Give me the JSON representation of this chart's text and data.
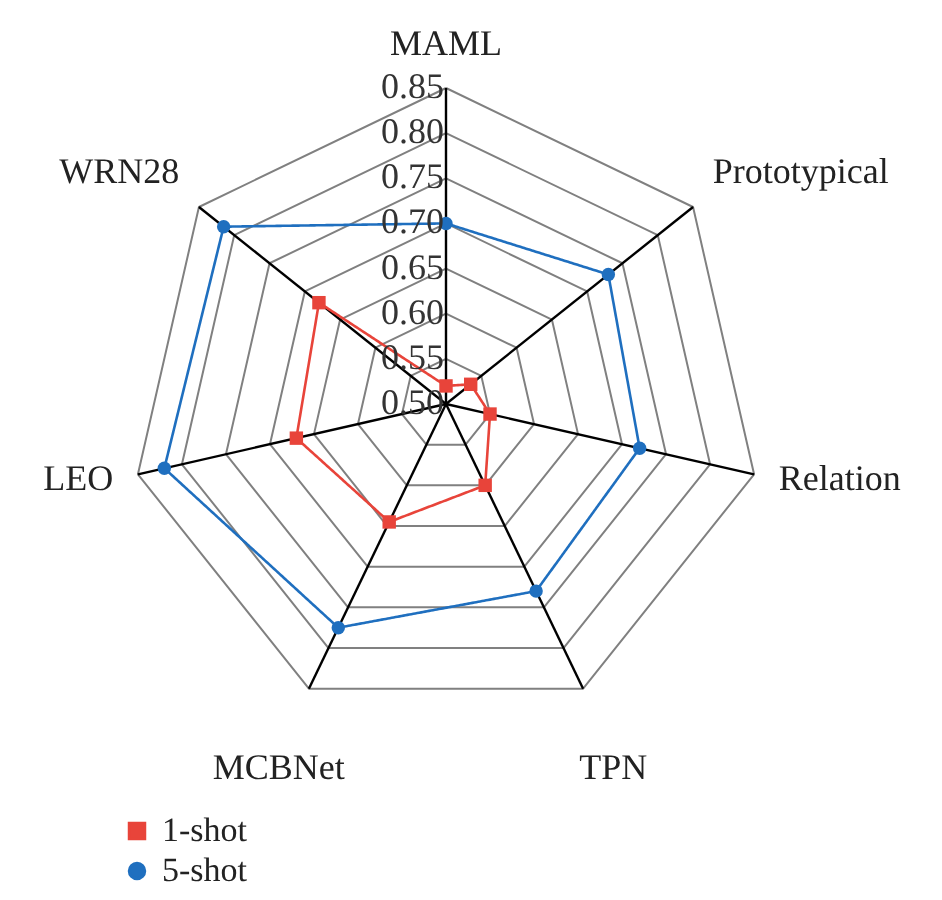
{
  "chart_data": {
    "type": "radar",
    "categories": [
      "MAML",
      "Prototypical",
      "Relation",
      "TPN",
      "MCBNet",
      "LEO",
      "WRN28"
    ],
    "series": [
      {
        "name": "1-shot",
        "color": "#e8443a",
        "marker": "square",
        "values": [
          0.52,
          0.535,
          0.55,
          0.6,
          0.645,
          0.67,
          0.68
        ]
      },
      {
        "name": "5-shot",
        "color": "#1f6fbf",
        "marker": "circle",
        "values": [
          0.7,
          0.73,
          0.72,
          0.73,
          0.775,
          0.82,
          0.815
        ]
      }
    ],
    "ylim": [
      0.5,
      0.85
    ],
    "yticks": [
      {
        "value": 0.5,
        "label": "0.50"
      },
      {
        "value": 0.55,
        "label": "0.55"
      },
      {
        "value": 0.6,
        "label": "0.60"
      },
      {
        "value": 0.65,
        "label": "0.65"
      },
      {
        "value": 0.7,
        "label": "0.70"
      },
      {
        "value": 0.75,
        "label": "0.75"
      },
      {
        "value": 0.8,
        "label": "0.80"
      },
      {
        "value": 0.85,
        "label": "0.85"
      }
    ],
    "grid": true,
    "legend": "bottom left",
    "line_style": "solid"
  }
}
